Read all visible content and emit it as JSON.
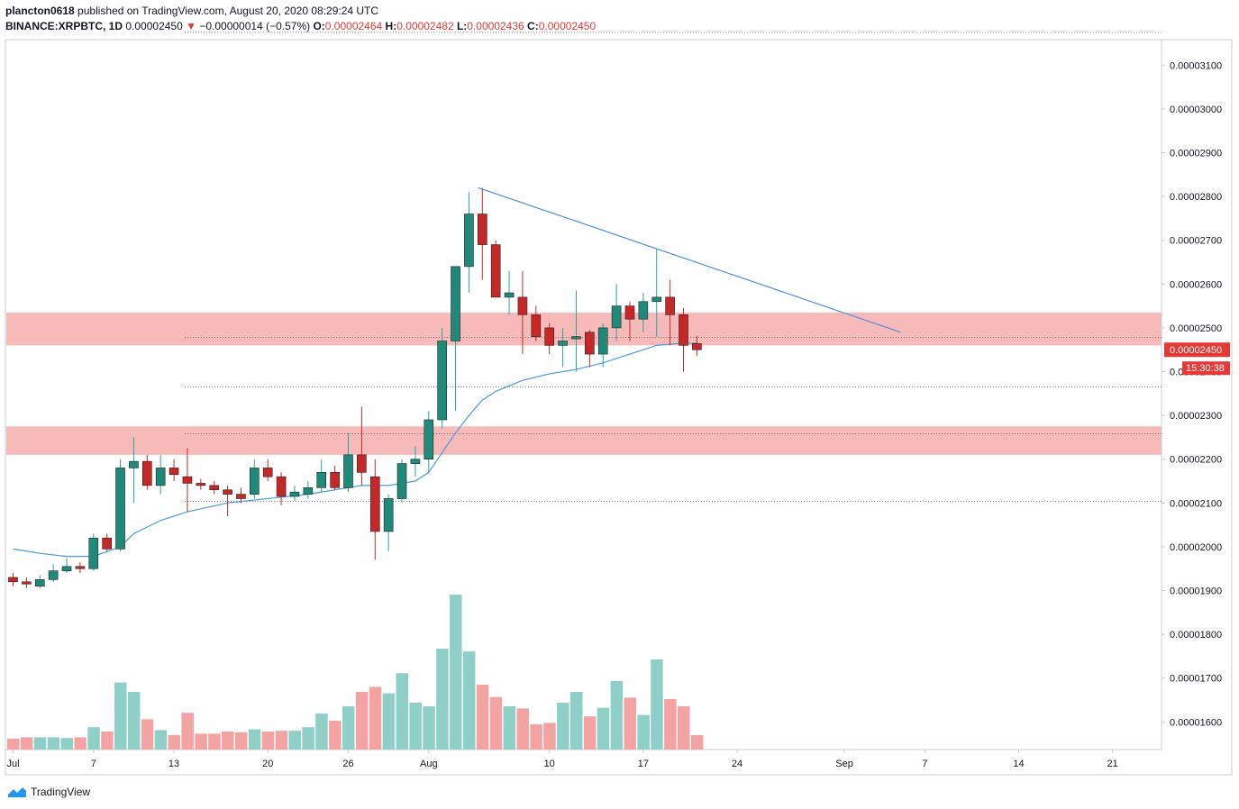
{
  "header": {
    "user": "plancton0618",
    "published_text": "published on TradingView.com, August 20, 2020 08:29:24 UTC",
    "symbol": "BINANCE:XRPBTC, 1D",
    "last": "0.00002450",
    "change_arrow": "▼",
    "change": "−0.00000014 (−0.57%)",
    "o_label": "O:",
    "o": "0.00002464",
    "h_label": "H:",
    "h": "0.00002482",
    "l_label": "L:",
    "l": "0.00002436",
    "c_label": "C:",
    "c": "0.00002450"
  },
  "footer": {
    "brand": "TradingView",
    "logo_icon": "tradingview-logo-icon"
  },
  "chart_data": {
    "type": "candlestick",
    "price_axis": {
      "min": 1.55e-05,
      "max": 3.18e-05,
      "ticks": [
        "0.00003100",
        "0.00003000",
        "0.00002900",
        "0.00002800",
        "0.00002700",
        "0.00002600",
        "0.00002500",
        "0.00002400",
        "0.00002300",
        "0.00002200",
        "0.00002100",
        "0.00002000",
        "0.00001900",
        "0.00001800",
        "0.00001700",
        "0.00001600"
      ],
      "current_price_label": "0.00002450",
      "countdown_label": "15:30:38"
    },
    "time_axis": {
      "start_date": "2020-07-01",
      "ticks": [
        {
          "day": 1,
          "label": "Jul"
        },
        {
          "day": 7,
          "label": "7"
        },
        {
          "day": 13,
          "label": "13"
        },
        {
          "day": 20,
          "label": "20"
        },
        {
          "day": 26,
          "label": "26"
        },
        {
          "day": 32,
          "label": "Aug"
        },
        {
          "day": 41,
          "label": "10"
        },
        {
          "day": 48,
          "label": "17"
        },
        {
          "day": 55,
          "label": "24"
        },
        {
          "day": 63,
          "label": "Sep"
        },
        {
          "day": 69,
          "label": "7"
        },
        {
          "day": 76,
          "label": "14"
        },
        {
          "day": 83,
          "label": "21"
        }
      ]
    },
    "candles": [
      {
        "d": 1,
        "o": 1.93e-05,
        "h": 1.94e-05,
        "l": 1.91e-05,
        "c": 1.92e-05,
        "v": 15
      },
      {
        "d": 2,
        "o": 1.92e-05,
        "h": 1.93e-05,
        "l": 1.905e-05,
        "c": 1.915e-05,
        "v": 17
      },
      {
        "d": 3,
        "o": 1.91e-05,
        "h": 1.935e-05,
        "l": 1.905e-05,
        "c": 1.925e-05,
        "v": 17
      },
      {
        "d": 4,
        "o": 1.925e-05,
        "h": 1.96e-05,
        "l": 1.92e-05,
        "c": 1.945e-05,
        "v": 17
      },
      {
        "d": 5,
        "o": 1.945e-05,
        "h": 1.975e-05,
        "l": 1.94e-05,
        "c": 1.955e-05,
        "v": 16
      },
      {
        "d": 6,
        "o": 1.955e-05,
        "h": 1.965e-05,
        "l": 1.94e-05,
        "c": 1.95e-05,
        "v": 17
      },
      {
        "d": 7,
        "o": 1.95e-05,
        "h": 2.03e-05,
        "l": 1.945e-05,
        "c": 2.02e-05,
        "v": 31
      },
      {
        "d": 8,
        "o": 2.02e-05,
        "h": 2.03e-05,
        "l": 1.99e-05,
        "c": 1.995e-05,
        "v": 25
      },
      {
        "d": 9,
        "o": 1.995e-05,
        "h": 2.2e-05,
        "l": 1.99e-05,
        "c": 2.18e-05,
        "v": 93
      },
      {
        "d": 10,
        "o": 2.18e-05,
        "h": 2.25e-05,
        "l": 2.1e-05,
        "c": 2.195e-05,
        "v": 80
      },
      {
        "d": 11,
        "o": 2.195e-05,
        "h": 2.21e-05,
        "l": 2.13e-05,
        "c": 2.14e-05,
        "v": 42
      },
      {
        "d": 12,
        "o": 2.14e-05,
        "h": 2.21e-05,
        "l": 2.12e-05,
        "c": 2.18e-05,
        "v": 27
      },
      {
        "d": 13,
        "o": 2.18e-05,
        "h": 2.2e-05,
        "l": 2.15e-05,
        "c": 2.165e-05,
        "v": 20
      },
      {
        "d": 14,
        "o": 2.16e-05,
        "h": 2.225e-05,
        "l": 2.08e-05,
        "c": 2.145e-05,
        "v": 51
      },
      {
        "d": 15,
        "o": 2.145e-05,
        "h": 2.155e-05,
        "l": 2.13e-05,
        "c": 2.14e-05,
        "v": 22
      },
      {
        "d": 16,
        "o": 2.14e-05,
        "h": 2.15e-05,
        "l": 2.12e-05,
        "c": 2.13e-05,
        "v": 22
      },
      {
        "d": 17,
        "o": 2.13e-05,
        "h": 2.14e-05,
        "l": 2.07e-05,
        "c": 2.12e-05,
        "v": 25
      },
      {
        "d": 18,
        "o": 2.12e-05,
        "h": 2.135e-05,
        "l": 2.1e-05,
        "c": 2.11e-05,
        "v": 24
      },
      {
        "d": 19,
        "o": 2.12e-05,
        "h": 2.2e-05,
        "l": 2.11e-05,
        "c": 2.18e-05,
        "v": 28
      },
      {
        "d": 20,
        "o": 2.18e-05,
        "h": 2.2e-05,
        "l": 2.15e-05,
        "c": 2.16e-05,
        "v": 25
      },
      {
        "d": 21,
        "o": 2.16e-05,
        "h": 2.17e-05,
        "l": 2.095e-05,
        "c": 2.115e-05,
        "v": 26
      },
      {
        "d": 22,
        "o": 2.115e-05,
        "h": 2.14e-05,
        "l": 2.105e-05,
        "c": 2.125e-05,
        "v": 26
      },
      {
        "d": 23,
        "o": 2.12e-05,
        "h": 2.15e-05,
        "l": 2.11e-05,
        "c": 2.135e-05,
        "v": 31
      },
      {
        "d": 24,
        "o": 2.135e-05,
        "h": 2.2e-05,
        "l": 2.125e-05,
        "c": 2.17e-05,
        "v": 50
      },
      {
        "d": 25,
        "o": 2.17e-05,
        "h": 2.185e-05,
        "l": 2.13e-05,
        "c": 2.135e-05,
        "v": 40
      },
      {
        "d": 26,
        "o": 2.135e-05,
        "h": 2.26e-05,
        "l": 2.125e-05,
        "c": 2.21e-05,
        "v": 60
      },
      {
        "d": 27,
        "o": 2.21e-05,
        "h": 2.32e-05,
        "l": 2.14e-05,
        "c": 2.17e-05,
        "v": 80
      },
      {
        "d": 28,
        "o": 2.16e-05,
        "h": 2.2e-05,
        "l": 1.97e-05,
        "c": 2.035e-05,
        "v": 87
      },
      {
        "d": 29,
        "o": 2.035e-05,
        "h": 2.12e-05,
        "l": 1.99e-05,
        "c": 2.11e-05,
        "v": 78
      },
      {
        "d": 30,
        "o": 2.11e-05,
        "h": 2.2e-05,
        "l": 2.1e-05,
        "c": 2.19e-05,
        "v": 106
      },
      {
        "d": 31,
        "o": 2.19e-05,
        "h": 2.23e-05,
        "l": 2.16e-05,
        "c": 2.2e-05,
        "v": 65
      },
      {
        "d": 32,
        "o": 2.2e-05,
        "h": 2.31e-05,
        "l": 2.17e-05,
        "c": 2.29e-05,
        "v": 60
      },
      {
        "d": 33,
        "o": 2.29e-05,
        "h": 2.5e-05,
        "l": 2.27e-05,
        "c": 2.47e-05,
        "v": 140
      },
      {
        "d": 34,
        "o": 2.47e-05,
        "h": 2.64e-05,
        "l": 2.31e-05,
        "c": 2.64e-05,
        "v": 215
      },
      {
        "d": 35,
        "o": 2.64e-05,
        "h": 2.81e-05,
        "l": 2.58e-05,
        "c": 2.76e-05,
        "v": 136
      },
      {
        "d": 36,
        "o": 2.76e-05,
        "h": 2.82e-05,
        "l": 2.61e-05,
        "c": 2.69e-05,
        "v": 90
      },
      {
        "d": 37,
        "o": 2.69e-05,
        "h": 2.7e-05,
        "l": 2.57e-05,
        "c": 2.57e-05,
        "v": 73
      },
      {
        "d": 38,
        "o": 2.57e-05,
        "h": 2.63e-05,
        "l": 2.53e-05,
        "c": 2.58e-05,
        "v": 60
      },
      {
        "d": 39,
        "o": 2.57e-05,
        "h": 2.63e-05,
        "l": 2.44e-05,
        "c": 2.53e-05,
        "v": 57
      },
      {
        "d": 40,
        "o": 2.53e-05,
        "h": 2.55e-05,
        "l": 2.47e-05,
        "c": 2.48e-05,
        "v": 35
      },
      {
        "d": 41,
        "o": 2.5e-05,
        "h": 2.51e-05,
        "l": 2.44e-05,
        "c": 2.46e-05,
        "v": 37
      },
      {
        "d": 42,
        "o": 2.46e-05,
        "h": 2.5e-05,
        "l": 2.41e-05,
        "c": 2.47e-05,
        "v": 65
      },
      {
        "d": 43,
        "o": 2.475e-05,
        "h": 2.585e-05,
        "l": 2.4e-05,
        "c": 2.48e-05,
        "v": 80
      },
      {
        "d": 44,
        "o": 2.49e-05,
        "h": 2.495e-05,
        "l": 2.41e-05,
        "c": 2.44e-05,
        "v": 46
      },
      {
        "d": 45,
        "o": 2.44e-05,
        "h": 2.51e-05,
        "l": 2.41e-05,
        "c": 2.5e-05,
        "v": 58
      },
      {
        "d": 46,
        "o": 2.5e-05,
        "h": 2.6e-05,
        "l": 2.47e-05,
        "c": 2.55e-05,
        "v": 95
      },
      {
        "d": 47,
        "o": 2.55e-05,
        "h": 2.56e-05,
        "l": 2.47e-05,
        "c": 2.52e-05,
        "v": 72
      },
      {
        "d": 48,
        "o": 2.52e-05,
        "h": 2.58e-05,
        "l": 2.49e-05,
        "c": 2.56e-05,
        "v": 48
      },
      {
        "d": 49,
        "o": 2.56e-05,
        "h": 2.68e-05,
        "l": 2.48e-05,
        "c": 2.57e-05,
        "v": 125
      },
      {
        "d": 50,
        "o": 2.57e-05,
        "h": 2.61e-05,
        "l": 2.46e-05,
        "c": 2.53e-05,
        "v": 70
      },
      {
        "d": 51,
        "o": 2.53e-05,
        "h": 2.545e-05,
        "l": 2.4e-05,
        "c": 2.46e-05,
        "v": 60
      },
      {
        "d": 52,
        "o": 2.464e-05,
        "h": 2.482e-05,
        "l": 2.436e-05,
        "c": 2.45e-05,
        "v": 20
      }
    ],
    "moving_average": [
      [
        1,
        1.995e-05
      ],
      [
        3,
        1.985e-05
      ],
      [
        5,
        1.978e-05
      ],
      [
        7,
        1.978e-05
      ],
      [
        9,
        2e-05
      ],
      [
        10,
        2.03e-05
      ],
      [
        12,
        2.06e-05
      ],
      [
        14,
        2.08e-05
      ],
      [
        17,
        2.1e-05
      ],
      [
        20,
        2.11e-05
      ],
      [
        23,
        2.12e-05
      ],
      [
        26,
        2.135e-05
      ],
      [
        27,
        2.14e-05
      ],
      [
        29,
        2.14e-05
      ],
      [
        31,
        2.15e-05
      ],
      [
        32,
        2.17e-05
      ],
      [
        33,
        2.215e-05
      ],
      [
        34,
        2.26e-05
      ],
      [
        35,
        2.3e-05
      ],
      [
        36,
        2.335e-05
      ],
      [
        37,
        2.355e-05
      ],
      [
        39,
        2.38e-05
      ],
      [
        41,
        2.395e-05
      ],
      [
        43,
        2.405e-05
      ],
      [
        45,
        2.42e-05
      ],
      [
        47,
        2.44e-05
      ],
      [
        49,
        2.46e-05
      ],
      [
        51,
        2.465e-05
      ],
      [
        52,
        2.465e-05
      ]
    ],
    "trendline": [
      [
        35.7,
        2.82e-05
      ],
      [
        67.2,
        2.49e-05
      ]
    ],
    "zones": [
      [
        2.46e-05,
        2.535e-05
      ],
      [
        2.21e-05,
        2.275e-05
      ]
    ],
    "dotted_levels": [
      3.175e-05,
      2.478e-05,
      2.365e-05,
      2.258e-05,
      2.104e-05
    ],
    "colors": {
      "up": "#26a69a",
      "up_body": "#1f8a7a",
      "down": "#c62828",
      "vol_up": "#8ed0c8",
      "vol_down": "#f4a3a3",
      "zone": "#f8b5b5",
      "ma": "#4a9be0",
      "trend": "#4a90d9",
      "price_tag": "#e53935",
      "grid_border": "#c9ccd3"
    }
  }
}
